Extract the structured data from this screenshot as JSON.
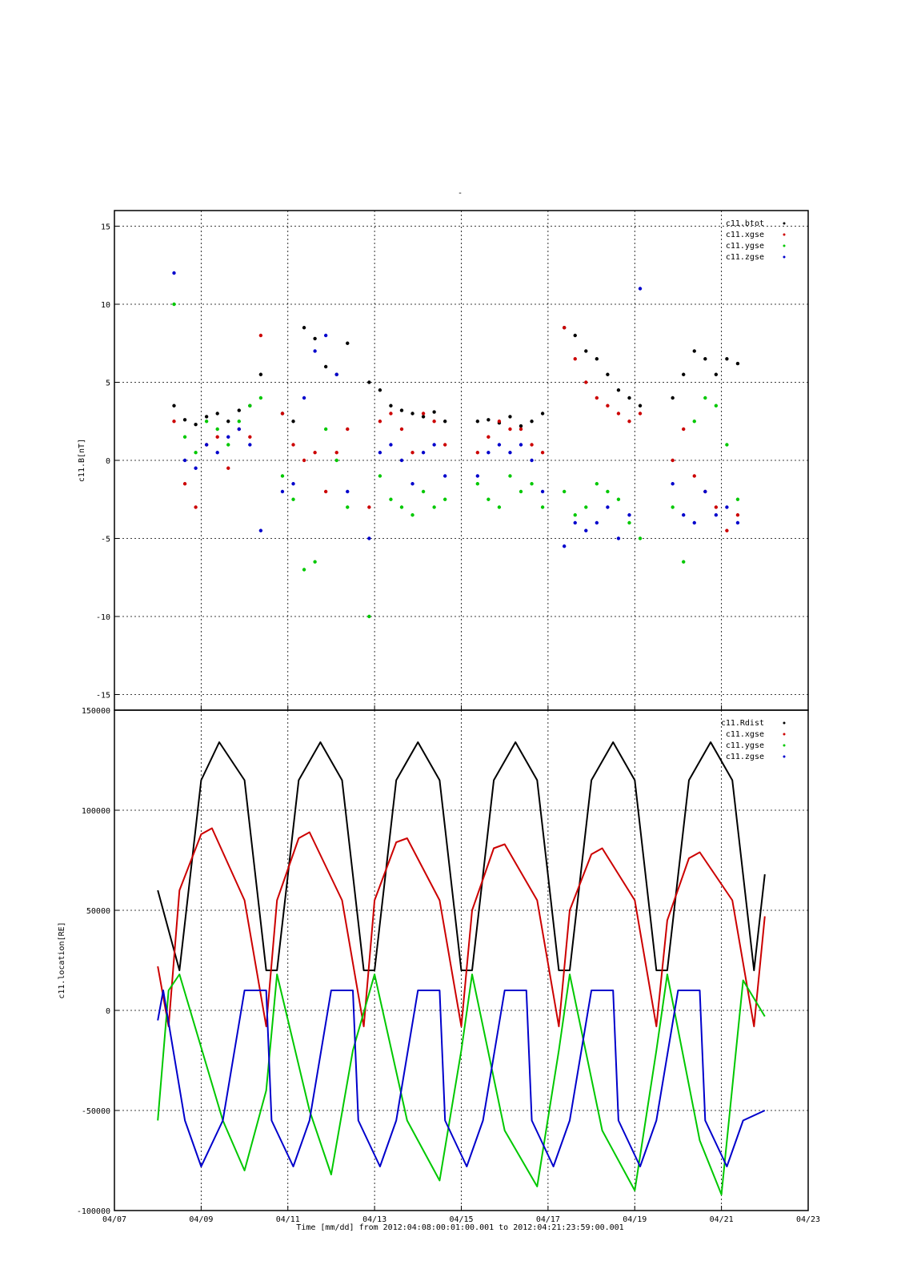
{
  "figure": {
    "title_mark": "-",
    "xlabel": "Time [mm/dd]  from 2012:04:08:00:01:00.001  to  2012:04:21:23:59:00.001"
  },
  "colors": {
    "black": "#000000",
    "red": "#cc0000",
    "green": "#00c800",
    "blue": "#0000cc"
  },
  "chart_data": [
    {
      "type": "scatter",
      "ylabel": "c11.B[nT]",
      "xlim": [
        "2012-04-07",
        "2012-04-23"
      ],
      "x_tick_labels": [
        "04/07",
        "04/09",
        "04/11",
        "04/13",
        "04/15",
        "04/17",
        "04/19",
        "04/21",
        "04/23"
      ],
      "ylim": [
        -16,
        16
      ],
      "y_tick_values": [
        -15,
        -10,
        -5,
        0,
        5,
        10,
        15
      ],
      "y_tick_labels": [
        "-15",
        "-10",
        "-5",
        "0",
        "5",
        "10",
        "15"
      ],
      "grid": true,
      "legend_position": "top-right",
      "series": [
        {
          "name": "c11.btot",
          "color": "#000000",
          "x": [
            "2012-04-08T09:00",
            "2012-04-08T15:00",
            "2012-04-08T21:00",
            "2012-04-09T03:00",
            "2012-04-09T09:00",
            "2012-04-09T15:00",
            "2012-04-09T21:00",
            "2012-04-10T03:00",
            "2012-04-10T09:00",
            "2012-04-10T21:00",
            "2012-04-11T03:00",
            "2012-04-11T09:00",
            "2012-04-11T15:00",
            "2012-04-11T21:00",
            "2012-04-12T03:00",
            "2012-04-12T09:00",
            "2012-04-12T21:00",
            "2012-04-13T03:00",
            "2012-04-13T09:00",
            "2012-04-13T15:00",
            "2012-04-13T21:00",
            "2012-04-14T03:00",
            "2012-04-14T09:00",
            "2012-04-14T15:00",
            "2012-04-15T09:00",
            "2012-04-15T15:00",
            "2012-04-15T21:00",
            "2012-04-16T03:00",
            "2012-04-16T09:00",
            "2012-04-16T15:00",
            "2012-04-16T21:00",
            "2012-04-17T09:00",
            "2012-04-17T15:00",
            "2012-04-17T21:00",
            "2012-04-18T03:00",
            "2012-04-18T09:00",
            "2012-04-18T15:00",
            "2012-04-18T21:00",
            "2012-04-19T03:00",
            "2012-04-19T21:00",
            "2012-04-20T03:00",
            "2012-04-20T09:00",
            "2012-04-20T15:00",
            "2012-04-20T21:00",
            "2012-04-21T03:00",
            "2012-04-21T09:00"
          ],
          "y": [
            3.5,
            2.6,
            2.3,
            2.8,
            3.0,
            2.5,
            3.2,
            3.5,
            5.5,
            3.0,
            2.5,
            8.5,
            7.8,
            6.0,
            5.5,
            7.5,
            5.0,
            4.5,
            3.5,
            3.2,
            3.0,
            2.8,
            3.1,
            2.5,
            2.5,
            2.6,
            2.4,
            2.8,
            2.2,
            2.5,
            3.0,
            8.5,
            8.0,
            7.0,
            6.5,
            5.5,
            4.5,
            4.0,
            3.5,
            4.0,
            5.5,
            7.0,
            6.5,
            5.5,
            6.5,
            6.2
          ]
        },
        {
          "name": "c11.xgse",
          "color": "#cc0000",
          "x": [
            "2012-04-08T09:00",
            "2012-04-08T15:00",
            "2012-04-08T21:00",
            "2012-04-09T03:00",
            "2012-04-09T09:00",
            "2012-04-09T15:00",
            "2012-04-09T21:00",
            "2012-04-10T03:00",
            "2012-04-10T09:00",
            "2012-04-10T21:00",
            "2012-04-11T03:00",
            "2012-04-11T09:00",
            "2012-04-11T15:00",
            "2012-04-11T21:00",
            "2012-04-12T03:00",
            "2012-04-12T09:00",
            "2012-04-12T21:00",
            "2012-04-13T03:00",
            "2012-04-13T09:00",
            "2012-04-13T15:00",
            "2012-04-13T21:00",
            "2012-04-14T03:00",
            "2012-04-14T09:00",
            "2012-04-14T15:00",
            "2012-04-15T09:00",
            "2012-04-15T15:00",
            "2012-04-15T21:00",
            "2012-04-16T03:00",
            "2012-04-16T09:00",
            "2012-04-16T15:00",
            "2012-04-16T21:00",
            "2012-04-17T09:00",
            "2012-04-17T15:00",
            "2012-04-17T21:00",
            "2012-04-18T03:00",
            "2012-04-18T09:00",
            "2012-04-18T15:00",
            "2012-04-18T21:00",
            "2012-04-19T03:00",
            "2012-04-19T21:00",
            "2012-04-20T03:00",
            "2012-04-20T09:00",
            "2012-04-20T15:00",
            "2012-04-20T21:00",
            "2012-04-21T03:00",
            "2012-04-21T09:00"
          ],
          "y": [
            2.5,
            -1.5,
            -3.0,
            1.0,
            1.5,
            -0.5,
            2.0,
            1.5,
            8.0,
            3.0,
            1.0,
            0.0,
            0.5,
            -2.0,
            0.5,
            2.0,
            -3.0,
            2.5,
            3.0,
            2.0,
            0.5,
            3.0,
            2.5,
            1.0,
            0.5,
            1.5,
            2.5,
            2.0,
            2.0,
            1.0,
            0.5,
            8.5,
            6.5,
            5.0,
            4.0,
            3.5,
            3.0,
            2.5,
            3.0,
            0.0,
            2.0,
            -1.0,
            -2.0,
            -3.0,
            -4.5,
            -3.5
          ]
        },
        {
          "name": "c11.ygse",
          "color": "#00c800",
          "x": [
            "2012-04-08T09:00",
            "2012-04-08T15:00",
            "2012-04-08T21:00",
            "2012-04-09T03:00",
            "2012-04-09T09:00",
            "2012-04-09T15:00",
            "2012-04-09T21:00",
            "2012-04-10T03:00",
            "2012-04-10T09:00",
            "2012-04-10T21:00",
            "2012-04-11T03:00",
            "2012-04-11T09:00",
            "2012-04-11T15:00",
            "2012-04-11T21:00",
            "2012-04-12T03:00",
            "2012-04-12T09:00",
            "2012-04-12T21:00",
            "2012-04-13T03:00",
            "2012-04-13T09:00",
            "2012-04-13T15:00",
            "2012-04-13T21:00",
            "2012-04-14T03:00",
            "2012-04-14T09:00",
            "2012-04-14T15:00",
            "2012-04-15T09:00",
            "2012-04-15T15:00",
            "2012-04-15T21:00",
            "2012-04-16T03:00",
            "2012-04-16T09:00",
            "2012-04-16T15:00",
            "2012-04-16T21:00",
            "2012-04-17T09:00",
            "2012-04-17T15:00",
            "2012-04-17T21:00",
            "2012-04-18T03:00",
            "2012-04-18T09:00",
            "2012-04-18T15:00",
            "2012-04-18T21:00",
            "2012-04-19T03:00",
            "2012-04-19T21:00",
            "2012-04-20T03:00",
            "2012-04-20T09:00",
            "2012-04-20T15:00",
            "2012-04-20T21:00",
            "2012-04-21T03:00",
            "2012-04-21T09:00"
          ],
          "y": [
            10.0,
            1.5,
            0.5,
            2.5,
            2.0,
            1.0,
            2.5,
            3.5,
            4.0,
            -1.0,
            -2.5,
            -7.0,
            -6.5,
            2.0,
            0.0,
            -3.0,
            -10.0,
            -1.0,
            -2.5,
            -3.0,
            -3.5,
            -2.0,
            -3.0,
            -2.5,
            -1.5,
            -2.5,
            -3.0,
            -1.0,
            -2.0,
            -1.5,
            -3.0,
            -2.0,
            -3.5,
            -3.0,
            -1.5,
            -2.0,
            -2.5,
            -4.0,
            -5.0,
            -3.0,
            -6.5,
            2.5,
            4.0,
            3.5,
            1.0,
            -2.5
          ]
        },
        {
          "name": "c11.zgse",
          "color": "#0000cc",
          "x": [
            "2012-04-08T09:00",
            "2012-04-08T15:00",
            "2012-04-08T21:00",
            "2012-04-09T03:00",
            "2012-04-09T09:00",
            "2012-04-09T15:00",
            "2012-04-09T21:00",
            "2012-04-10T03:00",
            "2012-04-10T09:00",
            "2012-04-10T21:00",
            "2012-04-11T03:00",
            "2012-04-11T09:00",
            "2012-04-11T15:00",
            "2012-04-11T21:00",
            "2012-04-12T03:00",
            "2012-04-12T09:00",
            "2012-04-12T21:00",
            "2012-04-13T03:00",
            "2012-04-13T09:00",
            "2012-04-13T15:00",
            "2012-04-13T21:00",
            "2012-04-14T03:00",
            "2012-04-14T09:00",
            "2012-04-14T15:00",
            "2012-04-15T09:00",
            "2012-04-15T15:00",
            "2012-04-15T21:00",
            "2012-04-16T03:00",
            "2012-04-16T09:00",
            "2012-04-16T15:00",
            "2012-04-16T21:00",
            "2012-04-17T09:00",
            "2012-04-17T15:00",
            "2012-04-17T21:00",
            "2012-04-18T03:00",
            "2012-04-18T09:00",
            "2012-04-18T15:00",
            "2012-04-18T21:00",
            "2012-04-19T03:00",
            "2012-04-19T21:00",
            "2012-04-20T03:00",
            "2012-04-20T09:00",
            "2012-04-20T15:00",
            "2012-04-20T21:00",
            "2012-04-21T03:00",
            "2012-04-21T09:00"
          ],
          "y": [
            12.0,
            0.0,
            -0.5,
            1.0,
            0.5,
            1.5,
            2.0,
            1.0,
            -4.5,
            -2.0,
            -1.5,
            4.0,
            7.0,
            8.0,
            5.5,
            -2.0,
            -5.0,
            0.5,
            1.0,
            0.0,
            -1.5,
            0.5,
            1.0,
            -1.0,
            -1.0,
            0.5,
            1.0,
            0.5,
            1.0,
            0.0,
            -2.0,
            -5.5,
            -4.0,
            -4.5,
            -4.0,
            -3.0,
            -5.0,
            -3.5,
            11.0,
            -1.5,
            -3.5,
            -4.0,
            -2.0,
            -3.5,
            -3.0,
            -4.0
          ]
        }
      ]
    },
    {
      "type": "line",
      "ylabel": "c11.location[RE]",
      "xlim": [
        "2012-04-07",
        "2012-04-23"
      ],
      "x_tick_labels": [
        "04/07",
        "04/09",
        "04/11",
        "04/13",
        "04/15",
        "04/17",
        "04/19",
        "04/21",
        "04/23"
      ],
      "ylim": [
        -100000,
        150000
      ],
      "y_tick_values": [
        -100000,
        -50000,
        0,
        50000,
        100000,
        150000
      ],
      "y_tick_labels": [
        "-100000",
        "-50000",
        "0",
        "50000",
        "100000",
        "150000"
      ],
      "grid": true,
      "legend_position": "top-right",
      "series": [
        {
          "name": "c11.Rdist",
          "color": "#000000",
          "x": [
            "2012-04-08T00:00",
            "2012-04-08T12:00",
            "2012-04-09T00:00",
            "2012-04-09T10:00",
            "2012-04-10T00:00",
            "2012-04-10T12:00",
            "2012-04-10T18:00",
            "2012-04-11T06:00",
            "2012-04-11T18:00",
            "2012-04-12T06:00",
            "2012-04-12T18:00",
            "2012-04-13T00:00",
            "2012-04-13T12:00",
            "2012-04-14T00:00",
            "2012-04-14T12:00",
            "2012-04-15T00:00",
            "2012-04-15T06:00",
            "2012-04-15T18:00",
            "2012-04-16T06:00",
            "2012-04-16T18:00",
            "2012-04-17T06:00",
            "2012-04-17T12:00",
            "2012-04-18T00:00",
            "2012-04-18T12:00",
            "2012-04-19T00:00",
            "2012-04-19T12:00",
            "2012-04-19T18:00",
            "2012-04-20T06:00",
            "2012-04-20T18:00",
            "2012-04-21T06:00",
            "2012-04-21T18:00",
            "2012-04-22T00:00"
          ],
          "y": [
            60000,
            20000,
            115000,
            134000,
            115000,
            20000,
            20000,
            115000,
            134000,
            115000,
            20000,
            20000,
            115000,
            134000,
            115000,
            20000,
            20000,
            115000,
            134000,
            115000,
            20000,
            20000,
            115000,
            134000,
            115000,
            20000,
            20000,
            115000,
            134000,
            115000,
            20000,
            68000
          ]
        },
        {
          "name": "c11.xgse",
          "color": "#cc0000",
          "x": [
            "2012-04-08T00:00",
            "2012-04-08T06:00",
            "2012-04-08T12:00",
            "2012-04-09T00:00",
            "2012-04-09T06:00",
            "2012-04-10T00:00",
            "2012-04-10T12:00",
            "2012-04-10T18:00",
            "2012-04-11T06:00",
            "2012-04-11T12:00",
            "2012-04-12T06:00",
            "2012-04-12T18:00",
            "2012-04-13T00:00",
            "2012-04-13T12:00",
            "2012-04-13T18:00",
            "2012-04-14T12:00",
            "2012-04-15T00:00",
            "2012-04-15T06:00",
            "2012-04-15T18:00",
            "2012-04-16T00:00",
            "2012-04-16T18:00",
            "2012-04-17T06:00",
            "2012-04-17T12:00",
            "2012-04-18T00:00",
            "2012-04-18T06:00",
            "2012-04-19T00:00",
            "2012-04-19T12:00",
            "2012-04-19T18:00",
            "2012-04-20T06:00",
            "2012-04-20T12:00",
            "2012-04-21T06:00",
            "2012-04-21T18:00",
            "2012-04-22T00:00"
          ],
          "y": [
            22000,
            -8000,
            60000,
            88000,
            91000,
            55000,
            -8000,
            55000,
            86000,
            89000,
            55000,
            -8000,
            55000,
            84000,
            86000,
            55000,
            -8000,
            50000,
            81000,
            83000,
            55000,
            -8000,
            50000,
            78000,
            81000,
            55000,
            -8000,
            45000,
            76000,
            79000,
            55000,
            -8000,
            47000
          ]
        },
        {
          "name": "c11.ygse",
          "color": "#00c800",
          "x": [
            "2012-04-08T00:00",
            "2012-04-08T06:00",
            "2012-04-08T12:00",
            "2012-04-09T12:00",
            "2012-04-10T00:00",
            "2012-04-10T12:00",
            "2012-04-10T18:00",
            "2012-04-11T12:00",
            "2012-04-12T00:00",
            "2012-04-12T12:00",
            "2012-04-13T00:00",
            "2012-04-13T18:00",
            "2012-04-14T12:00",
            "2012-04-15T00:00",
            "2012-04-15T06:00",
            "2012-04-16T00:00",
            "2012-04-16T18:00",
            "2012-04-17T06:00",
            "2012-04-17T12:00",
            "2012-04-18T06:00",
            "2012-04-19T00:00",
            "2012-04-19T12:00",
            "2012-04-19T18:00",
            "2012-04-20T12:00",
            "2012-04-21T00:00",
            "2012-04-21T12:00",
            "2012-04-22T00:00"
          ],
          "y": [
            -55000,
            10000,
            18000,
            -55000,
            -80000,
            -40000,
            18000,
            -50000,
            -82000,
            -20000,
            18000,
            -55000,
            -85000,
            -20000,
            18000,
            -60000,
            -88000,
            -20000,
            18000,
            -60000,
            -90000,
            -20000,
            18000,
            -65000,
            -92000,
            15000,
            -3000
          ]
        },
        {
          "name": "c11.zgse",
          "color": "#0000cc",
          "x": [
            "2012-04-08T00:00",
            "2012-04-08T03:00",
            "2012-04-08T15:00",
            "2012-04-09T00:00",
            "2012-04-09T12:00",
            "2012-04-10T00:00",
            "2012-04-10T12:00",
            "2012-04-10T15:00",
            "2012-04-11T03:00",
            "2012-04-11T12:00",
            "2012-04-12T00:00",
            "2012-04-12T12:00",
            "2012-04-12T15:00",
            "2012-04-13T03:00",
            "2012-04-13T12:00",
            "2012-04-14T00:00",
            "2012-04-14T12:00",
            "2012-04-14T15:00",
            "2012-04-15T03:00",
            "2012-04-15T12:00",
            "2012-04-16T00:00",
            "2012-04-16T12:00",
            "2012-04-16T15:00",
            "2012-04-17T03:00",
            "2012-04-17T12:00",
            "2012-04-18T00:00",
            "2012-04-18T12:00",
            "2012-04-18T15:00",
            "2012-04-19T03:00",
            "2012-04-19T12:00",
            "2012-04-20T00:00",
            "2012-04-20T12:00",
            "2012-04-20T15:00",
            "2012-04-21T03:00",
            "2012-04-21T12:00",
            "2012-04-22T00:00"
          ],
          "y": [
            -5000,
            10000,
            -55000,
            -78000,
            -55000,
            10000,
            10000,
            -55000,
            -78000,
            -55000,
            10000,
            10000,
            -55000,
            -78000,
            -55000,
            10000,
            10000,
            -55000,
            -78000,
            -55000,
            10000,
            10000,
            -55000,
            -78000,
            -55000,
            10000,
            10000,
            -55000,
            -78000,
            -55000,
            10000,
            10000,
            -55000,
            -78000,
            -55000,
            -50000
          ]
        }
      ]
    }
  ]
}
